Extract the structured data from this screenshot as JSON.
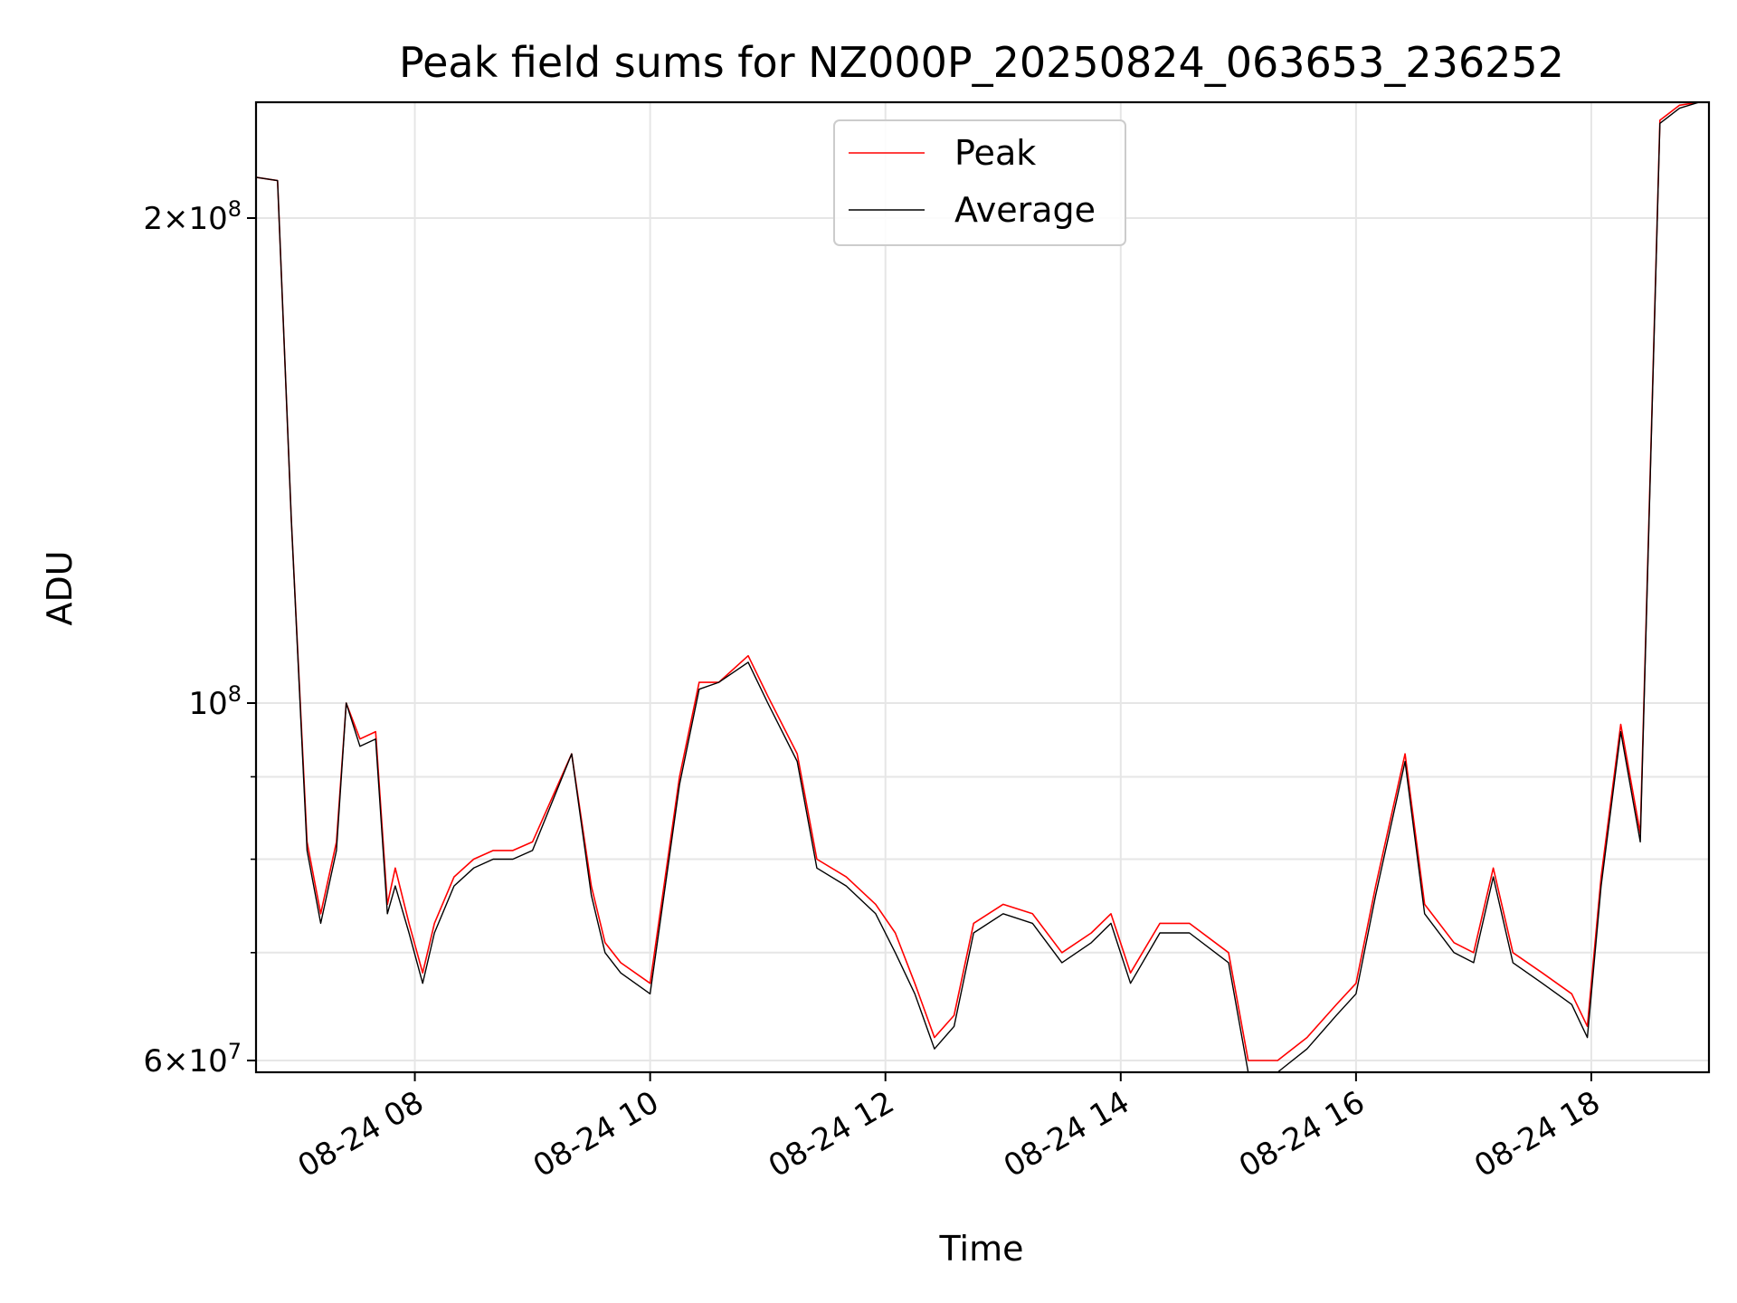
{
  "chart_data": {
    "type": "line",
    "title": "Peak field sums for NZ000P_20250824_063653_236252",
    "xlabel": "Time",
    "ylabel": "ADU",
    "yscale": "log",
    "ylim": [
      59000000,
      236000000
    ],
    "xlim": [
      "08-24 06:39",
      "08-24 19:00"
    ],
    "grid": true,
    "legend_position": "upper center",
    "x_tick_labels": [
      "08-24 08",
      "08-24 10",
      "08-24 12",
      "08-24 14",
      "08-24 16",
      "08-24 18"
    ],
    "y_tick_labels": [
      {
        "mantissa": "2",
        "exponent": "8",
        "value": 200000000
      },
      {
        "mantissa": "",
        "exponent": "8",
        "value": 100000000
      },
      {
        "mantissa": "6",
        "exponent": "7",
        "value": 60000000
      }
    ],
    "y_minor_ticks": [
      70000000,
      80000000,
      90000000
    ],
    "series": [
      {
        "name": "Peak",
        "color": "#ff0000",
        "x": [
          "08-24 06:39",
          "08-24 06:50",
          "08-24 06:57",
          "08-24 07:05",
          "08-24 07:12",
          "08-24 07:20",
          "08-24 07:25",
          "08-24 07:32",
          "08-24 07:40",
          "08-24 07:46",
          "08-24 07:50",
          "08-24 07:57",
          "08-24 08:04",
          "08-24 08:10",
          "08-24 08:20",
          "08-24 08:30",
          "08-24 08:40",
          "08-24 08:50",
          "08-24 09:00",
          "08-24 09:20",
          "08-24 09:30",
          "08-24 09:37",
          "08-24 09:45",
          "08-24 10:00",
          "08-24 10:15",
          "08-24 10:25",
          "08-24 10:35",
          "08-24 10:50",
          "08-24 11:00",
          "08-24 11:15",
          "08-24 11:25",
          "08-24 11:40",
          "08-24 11:55",
          "08-24 12:05",
          "08-24 12:15",
          "08-24 12:25",
          "08-24 12:35",
          "08-24 12:45",
          "08-24 13:00",
          "08-24 13:15",
          "08-24 13:30",
          "08-24 13:45",
          "08-24 13:55",
          "08-24 14:05",
          "08-24 14:20",
          "08-24 14:35",
          "08-24 14:55",
          "08-24 15:05",
          "08-24 15:20",
          "08-24 15:35",
          "08-24 15:50",
          "08-24 16:00",
          "08-24 16:10",
          "08-24 16:25",
          "08-24 16:35",
          "08-24 16:50",
          "08-24 17:00",
          "08-24 17:10",
          "08-24 17:20",
          "08-24 17:35",
          "08-24 17:50",
          "08-24 17:58",
          "08-24 18:05",
          "08-24 18:15",
          "08-24 18:25",
          "08-24 18:35",
          "08-24 18:45",
          "08-24 18:55",
          "08-24 19:00"
        ],
        "values": [
          212000000,
          211000000,
          130000000,
          82000000,
          74000000,
          82000000,
          100000000,
          95000000,
          96000000,
          75000000,
          79000000,
          73000000,
          68000000,
          73000000,
          78000000,
          80000000,
          81000000,
          81000000,
          82000000,
          93000000,
          77000000,
          71000000,
          69000000,
          67000000,
          90000000,
          103000000,
          103000000,
          107000000,
          101000000,
          93000000,
          80000000,
          78000000,
          75000000,
          72000000,
          67000000,
          62000000,
          64000000,
          73000000,
          75000000,
          74000000,
          70000000,
          72000000,
          74000000,
          68000000,
          73000000,
          73000000,
          70000000,
          60000000,
          60000000,
          62000000,
          65000000,
          67000000,
          77000000,
          93000000,
          75000000,
          71000000,
          70000000,
          79000000,
          70000000,
          68000000,
          66000000,
          63000000,
          78000000,
          97000000,
          83000000,
          230000000,
          235000000,
          236000000,
          236000000
        ]
      },
      {
        "name": "Average",
        "color": "#000000",
        "x": [
          "08-24 06:39",
          "08-24 06:50",
          "08-24 06:57",
          "08-24 07:05",
          "08-24 07:12",
          "08-24 07:20",
          "08-24 07:25",
          "08-24 07:32",
          "08-24 07:40",
          "08-24 07:46",
          "08-24 07:50",
          "08-24 07:57",
          "08-24 08:04",
          "08-24 08:10",
          "08-24 08:20",
          "08-24 08:30",
          "08-24 08:40",
          "08-24 08:50",
          "08-24 09:00",
          "08-24 09:20",
          "08-24 09:30",
          "08-24 09:37",
          "08-24 09:45",
          "08-24 10:00",
          "08-24 10:15",
          "08-24 10:25",
          "08-24 10:35",
          "08-24 10:50",
          "08-24 11:00",
          "08-24 11:15",
          "08-24 11:25",
          "08-24 11:40",
          "08-24 11:55",
          "08-24 12:05",
          "08-24 12:15",
          "08-24 12:25",
          "08-24 12:35",
          "08-24 12:45",
          "08-24 13:00",
          "08-24 13:15",
          "08-24 13:30",
          "08-24 13:45",
          "08-24 13:55",
          "08-24 14:05",
          "08-24 14:20",
          "08-24 14:35",
          "08-24 14:55",
          "08-24 15:05",
          "08-24 15:20",
          "08-24 15:35",
          "08-24 15:50",
          "08-24 16:00",
          "08-24 16:10",
          "08-24 16:25",
          "08-24 16:35",
          "08-24 16:50",
          "08-24 17:00",
          "08-24 17:10",
          "08-24 17:20",
          "08-24 17:35",
          "08-24 17:50",
          "08-24 17:58",
          "08-24 18:05",
          "08-24 18:15",
          "08-24 18:25",
          "08-24 18:35",
          "08-24 18:45",
          "08-24 18:55",
          "08-24 19:00"
        ],
        "values": [
          212000000,
          211000000,
          130000000,
          81000000,
          73000000,
          81000000,
          100000000,
          94000000,
          95000000,
          74000000,
          77000000,
          72000000,
          67000000,
          72000000,
          77000000,
          79000000,
          80000000,
          80000000,
          81000000,
          93000000,
          76000000,
          70000000,
          68000000,
          66000000,
          89000000,
          102000000,
          103000000,
          106000000,
          100000000,
          92000000,
          79000000,
          77000000,
          74000000,
          70000000,
          66000000,
          61000000,
          63000000,
          72000000,
          74000000,
          73000000,
          69000000,
          71000000,
          73000000,
          67000000,
          72000000,
          72000000,
          69000000,
          59000000,
          59000000,
          61000000,
          64000000,
          66000000,
          76000000,
          92000000,
          74000000,
          70000000,
          69000000,
          78000000,
          69000000,
          67000000,
          65000000,
          62000000,
          77000000,
          96000000,
          82000000,
          229000000,
          234000000,
          236000000,
          236000000
        ]
      }
    ]
  }
}
